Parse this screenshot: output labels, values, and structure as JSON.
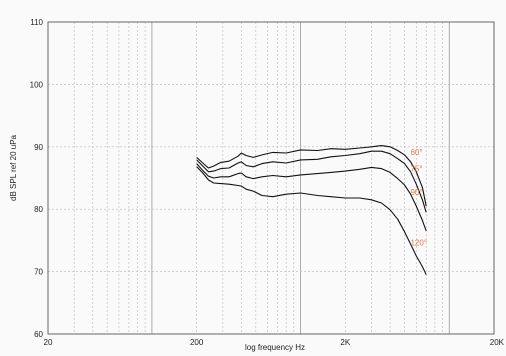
{
  "chart_data": {
    "type": "line",
    "title": "",
    "xlabel": "log frequency   Hz",
    "ylabel": "dB SPL ref 20 uPa",
    "x_scale": "log",
    "xlim": [
      20,
      20000
    ],
    "ylim": [
      60,
      110
    ],
    "x_ticks": [
      {
        "value": 20,
        "label": "20"
      },
      {
        "value": 200,
        "label": "200"
      },
      {
        "value": 2000,
        "label": "2K"
      },
      {
        "value": 20000,
        "label": "20K"
      }
    ],
    "y_ticks": [
      {
        "value": 60,
        "label": "60"
      },
      {
        "value": 70,
        "label": "70"
      },
      {
        "value": 80,
        "label": "80"
      },
      {
        "value": 90,
        "label": "90"
      },
      {
        "value": 100,
        "label": "100"
      },
      {
        "value": 110,
        "label": "110"
      }
    ],
    "grid": true,
    "label_color": "#e07a4a",
    "line_color": "#111111",
    "series": [
      {
        "name": "60°",
        "points": [
          [
            200,
            88.3
          ],
          [
            220,
            87.4
          ],
          [
            240,
            86.6
          ],
          [
            260,
            86.9
          ],
          [
            290,
            87.5
          ],
          [
            330,
            87.7
          ],
          [
            380,
            88.5
          ],
          [
            400,
            89.0
          ],
          [
            430,
            88.6
          ],
          [
            480,
            88.3
          ],
          [
            550,
            88.7
          ],
          [
            650,
            89.1
          ],
          [
            800,
            89.0
          ],
          [
            1000,
            89.5
          ],
          [
            1300,
            89.4
          ],
          [
            1600,
            89.7
          ],
          [
            2000,
            89.6
          ],
          [
            2500,
            89.8
          ],
          [
            3000,
            90.0
          ],
          [
            3500,
            90.2
          ],
          [
            4000,
            90.0
          ],
          [
            4500,
            89.4
          ],
          [
            5000,
            88.7
          ],
          [
            5500,
            87.6
          ],
          [
            6000,
            86.0
          ],
          [
            6600,
            83.5
          ],
          [
            7000,
            80.5
          ]
        ],
        "label": "60°"
      },
      {
        "name": "75°",
        "points": [
          [
            200,
            87.9
          ],
          [
            220,
            86.9
          ],
          [
            240,
            86.0
          ],
          [
            260,
            86.1
          ],
          [
            290,
            86.5
          ],
          [
            330,
            86.6
          ],
          [
            380,
            87.4
          ],
          [
            400,
            87.6
          ],
          [
            430,
            87.0
          ],
          [
            480,
            86.8
          ],
          [
            550,
            87.3
          ],
          [
            650,
            87.6
          ],
          [
            800,
            87.4
          ],
          [
            1000,
            87.9
          ],
          [
            1300,
            88.0
          ],
          [
            1600,
            88.4
          ],
          [
            2000,
            88.6
          ],
          [
            2500,
            88.9
          ],
          [
            3000,
            89.3
          ],
          [
            3500,
            89.3
          ],
          [
            4000,
            88.9
          ],
          [
            4500,
            88.1
          ],
          [
            5000,
            87.3
          ],
          [
            5500,
            86.0
          ],
          [
            6000,
            84.0
          ],
          [
            6600,
            81.5
          ],
          [
            7000,
            79.5
          ]
        ],
        "label": "75°"
      },
      {
        "name": "90°",
        "points": [
          [
            200,
            87.3
          ],
          [
            220,
            86.2
          ],
          [
            240,
            85.3
          ],
          [
            260,
            85.0
          ],
          [
            290,
            85.2
          ],
          [
            330,
            85.2
          ],
          [
            380,
            85.7
          ],
          [
            400,
            85.8
          ],
          [
            430,
            85.2
          ],
          [
            480,
            84.9
          ],
          [
            550,
            85.2
          ],
          [
            650,
            85.4
          ],
          [
            800,
            85.2
          ],
          [
            1000,
            85.5
          ],
          [
            1300,
            85.7
          ],
          [
            1600,
            85.9
          ],
          [
            2000,
            86.1
          ],
          [
            2500,
            86.4
          ],
          [
            3000,
            86.7
          ],
          [
            3500,
            86.5
          ],
          [
            4000,
            85.9
          ],
          [
            4500,
            84.9
          ],
          [
            5000,
            83.9
          ],
          [
            5500,
            82.4
          ],
          [
            6000,
            80.5
          ],
          [
            6600,
            78.2
          ],
          [
            7000,
            76.5
          ]
        ],
        "label": "90°"
      },
      {
        "name": "120°",
        "points": [
          [
            200,
            86.8
          ],
          [
            220,
            85.8
          ],
          [
            240,
            84.7
          ],
          [
            260,
            84.2
          ],
          [
            290,
            84.1
          ],
          [
            330,
            84.0
          ],
          [
            380,
            83.8
          ],
          [
            400,
            83.7
          ],
          [
            430,
            83.2
          ],
          [
            480,
            82.9
          ],
          [
            550,
            82.2
          ],
          [
            650,
            82.0
          ],
          [
            800,
            82.4
          ],
          [
            1000,
            82.6
          ],
          [
            1300,
            82.2
          ],
          [
            1600,
            82.0
          ],
          [
            2000,
            81.8
          ],
          [
            2500,
            81.8
          ],
          [
            3000,
            81.5
          ],
          [
            3500,
            81.0
          ],
          [
            4000,
            79.9
          ],
          [
            4500,
            78.4
          ],
          [
            5000,
            76.4
          ],
          [
            5500,
            74.4
          ],
          [
            6000,
            72.5
          ],
          [
            6600,
            70.8
          ],
          [
            7000,
            69.5
          ]
        ],
        "label": "120°"
      }
    ]
  }
}
